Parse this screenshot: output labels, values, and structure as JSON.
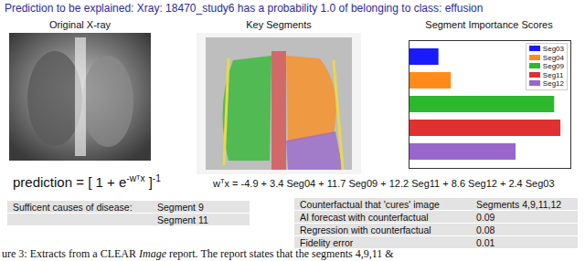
{
  "header": "Prediction to be explained:  Xray: 18470_study6 has a probability 1.0 of belonging to class: effusion",
  "panels": [
    "Original X-ray",
    "Key Segments"
  ],
  "chart_data": {
    "type": "bar",
    "title": "Segment Importance Scores",
    "orientation": "horizontal",
    "categories": [
      "Seg03",
      "Seg04",
      "Seg09",
      "Seg11",
      "Seg12"
    ],
    "values": [
      2.4,
      3.4,
      11.7,
      12.2,
      8.6
    ],
    "colors": [
      "#1a1aff",
      "#ff8c1a",
      "#2eb82e",
      "#e03030",
      "#9966cc"
    ],
    "xlim": [
      0,
      13
    ],
    "tick_labels": false,
    "grid": false,
    "legend": "upper right"
  },
  "prediction_formula": [
    {
      "text": "prediction = [ 1 + e"
    },
    {
      "text": "-wᵀx",
      "sup": true
    },
    {
      "text": " ]"
    },
    {
      "text": "-1",
      "sup": true
    }
  ],
  "linear_formula": [
    {
      "text": "w"
    },
    {
      "text": "T",
      "sup": true
    },
    {
      "text": "x = -4.9 + 3.4 Seg04 + 11.7 Seg09 + 12.2 Seg11 + 8.6 Seg12 + 2.4 Seg03"
    }
  ],
  "sufficient_causes": {
    "rows": [
      [
        "Sufficent causes of disease:",
        "Segment 9"
      ],
      [
        null,
        "Segment 11"
      ]
    ]
  },
  "counterfactual": {
    "rows": [
      [
        "Counterfactual that 'cures' image",
        "Segments 4,9,11,12"
      ],
      [
        "AI forecast with counterfactual",
        0.09
      ],
      [
        "Regression with counterfactual",
        0.08
      ],
      [
        "Fidelity error",
        0.01
      ]
    ]
  },
  "caption": [
    {
      "text": "ure 3: Extracts from a CLEAR "
    },
    {
      "text": "Image",
      "italic": true
    },
    {
      "text": " report. The report states that the segments 4,9,11 &"
    }
  ]
}
